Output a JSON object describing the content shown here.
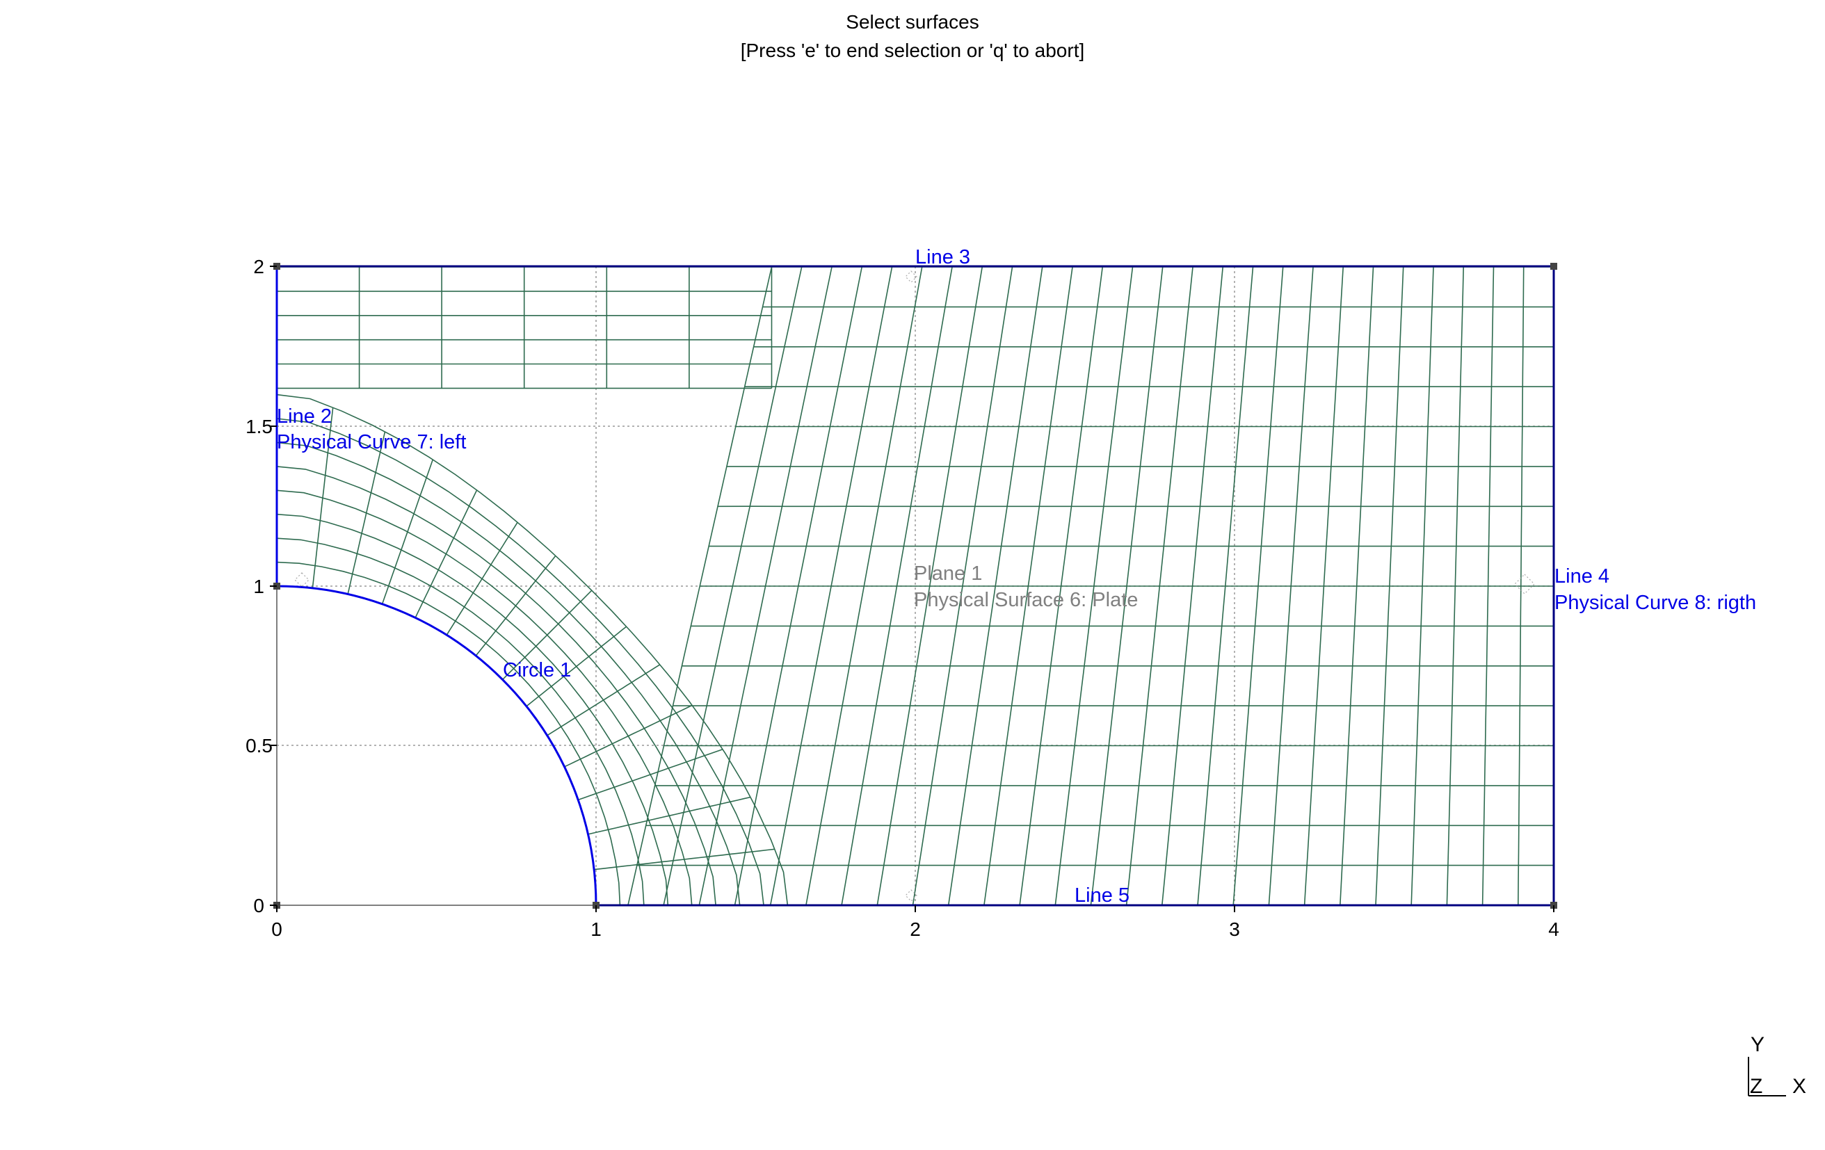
{
  "window": {
    "status_line_1": "Select surfaces",
    "status_line_2": "[Press 'e' to end selection or 'q' to abort]"
  },
  "axes": {
    "x_ticks": [
      "0",
      "1",
      "2",
      "3",
      "4"
    ],
    "y_ticks": [
      "0",
      "0.5",
      "1",
      "1.5",
      "2"
    ],
    "xlim": [
      0,
      4
    ],
    "ylim": [
      0,
      2
    ]
  },
  "entities": {
    "line3": "Line 3",
    "line2": "Line 2",
    "line2_physical": "Physical Curve 7: left",
    "line4": "Line 4",
    "line4_physical": "Physical Curve 8: rigth",
    "line5": "Line 5",
    "circle1": "Circle 1",
    "plane1": "Plane 1",
    "plane1_physical": "Physical Surface 6: Plate"
  },
  "axis_triad": {
    "y": "Y",
    "z": "Z",
    "x": "X"
  },
  "colors": {
    "mesh": "#2e6b4f",
    "boundary": "#0000e6",
    "boundary_dark": "#000080",
    "label_blue": "#0000e6",
    "label_gray": "#808080"
  }
}
